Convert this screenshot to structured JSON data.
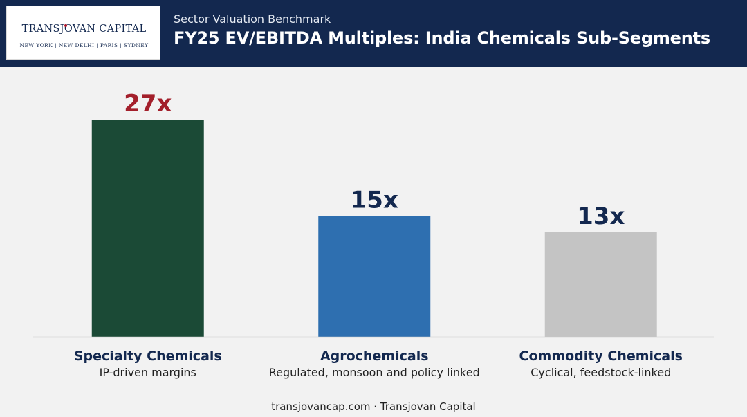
{
  "header": {
    "logo_name": "TRANSJOVAN CAPITAL",
    "logo_cities": "NEW YORK | NEW DELHI | PARIS | SYDNEY",
    "kicker": "Sector Valuation Benchmark",
    "title": "FY25 EV/EBITDA Multiples: India Chemicals Sub-Segments"
  },
  "chart_data": {
    "type": "bar",
    "title": "FY25 EV/EBITDA Multiples: India Chemicals Sub-Segments",
    "categories": [
      "Specialty Chemicals",
      "Agrochemicals",
      "Commodity Chemicals"
    ],
    "subtitles": [
      "IP-driven margins",
      "Regulated, monsoon and policy linked",
      "Cyclical, feedstock-linked"
    ],
    "values": [
      27,
      15,
      13
    ],
    "data_labels": [
      "27x",
      "15x",
      "13x"
    ],
    "bar_colors": [
      "#1b4a36",
      "#2e6fb0",
      "#c4c4c4"
    ],
    "label_colors": [
      "#a31f2b",
      "#13284f",
      "#13284f"
    ],
    "ylim": [
      0,
      27
    ],
    "grid": false,
    "legend": "none"
  },
  "footer": {
    "text": "transjovancap.com · Transjovan Capital"
  }
}
